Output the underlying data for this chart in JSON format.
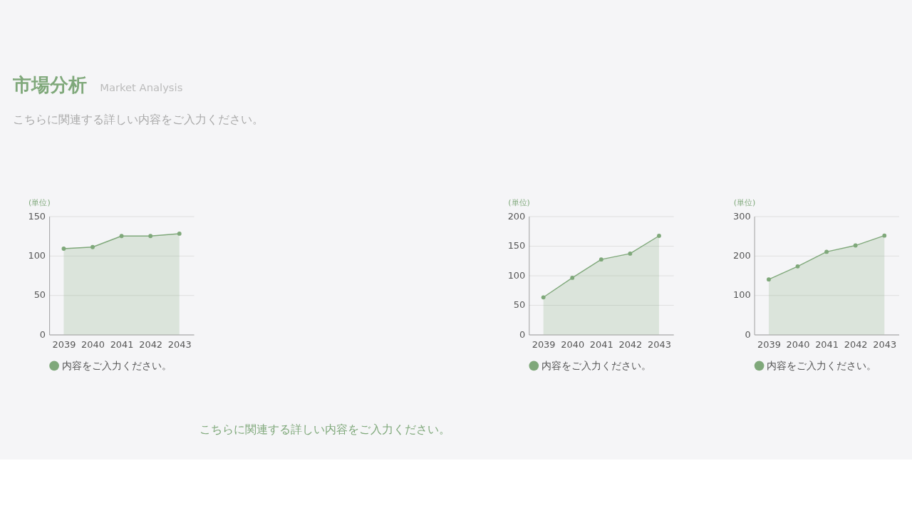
{
  "chart_data": [
    {
      "type": "area",
      "title": "市場分析",
      "subtitle": "Market Analysis",
      "annotations": [
        "こちらに関連する詳しい内容をご入力ください。",
        "こちらに関連する詳しい内容をご入力ください。"
      ],
      "ylabel": "(単位)",
      "categories": [
        "2039",
        "2040",
        "2041",
        "2042",
        "2043"
      ],
      "series": [
        {
          "name": "内容をご入力ください。",
          "color": "#7fa87a",
          "values": [
            109,
            111,
            125,
            125,
            128
          ]
        }
      ],
      "ylim": [
        0,
        150
      ],
      "yticks": [
        0,
        50,
        100,
        150
      ],
      "grid": "y",
      "legend": "bottom",
      "marker": "circle"
    },
    {
      "type": "area",
      "ylabel": "(単位)",
      "categories": [
        "2039",
        "2040",
        "2041",
        "2042",
        "2043"
      ],
      "series": [
        {
          "name": "内容をご入力ください。",
          "color": "#7fa87a",
          "values": [
            63,
            96,
            127,
            137,
            167
          ]
        }
      ],
      "ylim": [
        0,
        200
      ],
      "yticks": [
        0,
        50,
        100,
        150,
        200
      ],
      "grid": "y",
      "legend": "bottom",
      "marker": "circle"
    },
    {
      "type": "area",
      "ylabel": "(単位)",
      "categories": [
        "2039",
        "2040",
        "2041",
        "2042",
        "2043"
      ],
      "series": [
        {
          "name": "内容をご入力ください。",
          "color": "#7fa87a",
          "values": [
            140,
            173,
            210,
            226,
            251
          ]
        }
      ],
      "ylim": [
        0,
        300
      ],
      "yticks": [
        0,
        100,
        200,
        300
      ],
      "grid": "y",
      "legend": "bottom",
      "marker": "circle"
    }
  ]
}
